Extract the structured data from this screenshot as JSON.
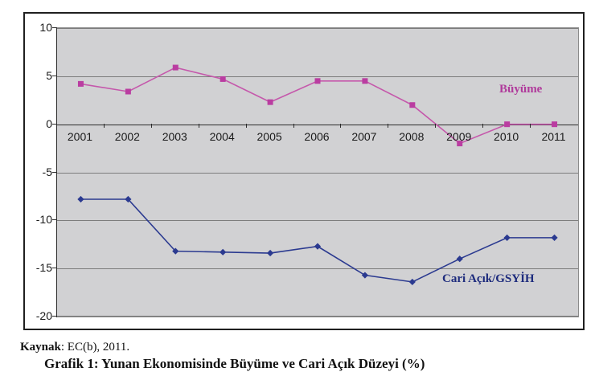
{
  "chart_data": {
    "type": "line",
    "title": "Grafik 1: Yunan Ekonomisinde Büyüme ve Cari Açık Düzeyi (%)",
    "categories": [
      "2001",
      "2002",
      "2003",
      "2004",
      "2005",
      "2006",
      "2007",
      "2008",
      "2009",
      "2010",
      "2011"
    ],
    "series": [
      {
        "name": "Büyüme",
        "color": "#c558ab",
        "marker": "square",
        "marker_color": "#ba3da1",
        "values": [
          4.2,
          3.4,
          5.9,
          4.7,
          2.3,
          4.5,
          4.5,
          2.0,
          -2.0,
          0.0,
          0.0
        ]
      },
      {
        "name": "Cari Açık/GSYİH",
        "color": "#2b3a90",
        "marker": "diamond",
        "marker_color": "#2b3a90",
        "values": [
          -7.8,
          -7.8,
          -13.2,
          -13.3,
          -13.4,
          -12.7,
          -15.7,
          -16.4,
          -14.0,
          -11.8,
          -11.8
        ]
      }
    ],
    "ylim": [
      -20,
      10
    ],
    "y_ticks": [
      10,
      5,
      0,
      -5,
      -10,
      -15,
      -20
    ],
    "grid": true,
    "legend_position": "inline-labels",
    "plot_bg": "#d1d1d3",
    "gridline_color": "#7d7d7d",
    "xlabel": "",
    "ylabel": ""
  },
  "caption": {
    "source_label": "Kaynak",
    "source_rest": ": EC(b), 2011.",
    "title": "Grafik 1: Yunan Ekonomisinde Büyüme ve Cari Açık Düzeyi (%)"
  }
}
